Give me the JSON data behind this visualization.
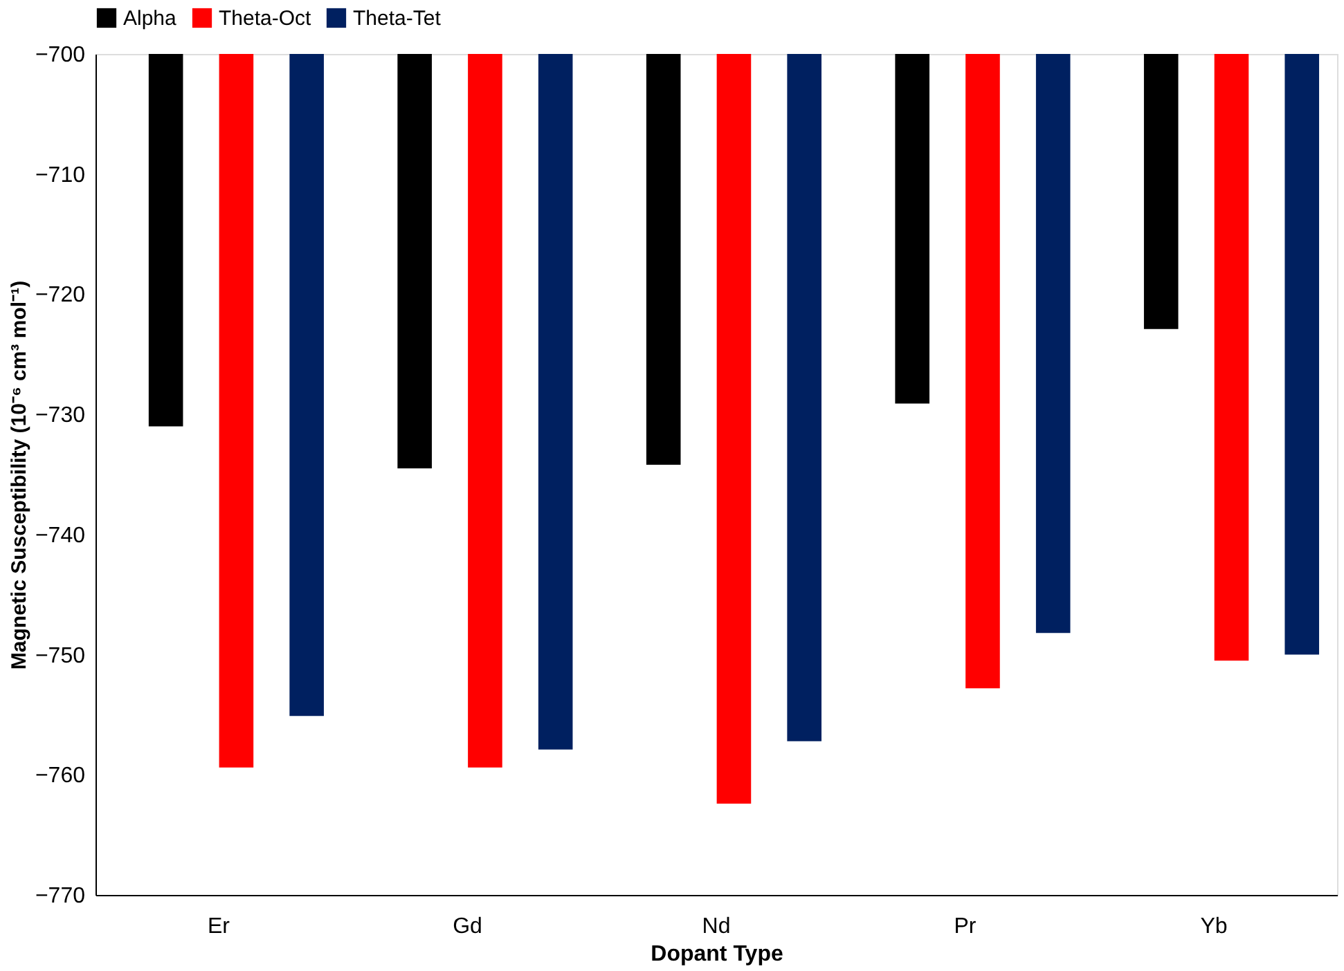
{
  "chart_data": {
    "type": "bar",
    "xlabel": "Dopant Type",
    "ylabel": "Magnetic Susceptibility (10⁻⁶ cm³ mol⁻¹)",
    "categories": [
      "Er",
      "Gd",
      "Nd",
      "Pr",
      "Yb"
    ],
    "series": [
      {
        "name": "Alpha",
        "color": "#000000",
        "values": [
          -731.0,
          -734.5,
          -734.2,
          -729.1,
          -722.9
        ]
      },
      {
        "name": "Theta-Oct",
        "color": "#ff0000",
        "values": [
          -759.4,
          -759.4,
          -762.4,
          -752.8,
          -750.5
        ]
      },
      {
        "name": "Theta-Tet",
        "color": "#002060",
        "values": [
          -755.1,
          -757.9,
          -757.2,
          -748.2,
          -750.0
        ]
      }
    ],
    "ylim": [
      -770,
      -700
    ],
    "yticks": [
      -770,
      -760,
      -750,
      -740,
      -730,
      -720,
      -710,
      -700
    ],
    "grid": false,
    "legend": "top"
  }
}
